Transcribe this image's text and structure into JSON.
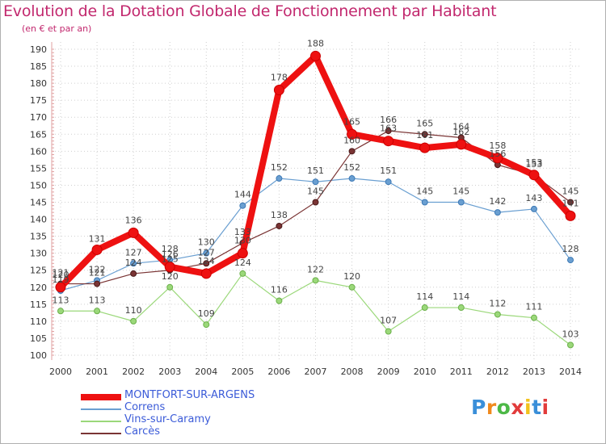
{
  "title": "Evolution de la Dotation Globale de Fonctionnement par Habitant",
  "subtitle": "(en € et par an)",
  "logo": {
    "text": "Proxiti",
    "colors": [
      "#3a8fd9",
      "#f08a1d",
      "#4cb846",
      "#e23b3b",
      "#f2c21d",
      "#3a8fd9",
      "#e23b3b"
    ]
  },
  "chart_data": {
    "type": "line",
    "title": "Evolution de la Dotation Globale de Fonctionnement par Habitant",
    "subtitle": "(en € et par an)",
    "x": [
      2000,
      2001,
      2002,
      2003,
      2004,
      2005,
      2006,
      2007,
      2008,
      2009,
      2010,
      2011,
      2012,
      2013,
      2014
    ],
    "x_tick_labels": [
      "2000",
      "2001",
      "2002",
      "2003",
      "2004",
      "2005",
      "2006",
      "2007",
      "2008",
      "2009",
      "2010",
      "2011",
      "2012",
      "2013",
      "2014"
    ],
    "ylim": [
      100,
      190
    ],
    "y_tick_labels": [
      "100",
      "105",
      "110",
      "115",
      "120",
      "125",
      "130",
      "135",
      "140",
      "145",
      "150",
      "155",
      "160",
      "165",
      "170",
      "175",
      "180",
      "185",
      "190"
    ],
    "grid": true,
    "legend_position": "bottom-left",
    "series": [
      {
        "name": "MONTFORT-SUR-ARGENS",
        "color": "#ee1111",
        "values": [
          120,
          131,
          136,
          126,
          124,
          130,
          178,
          188,
          165,
          163,
          161,
          162,
          158,
          153,
          141
        ]
      },
      {
        "name": "Correns",
        "color": "#6a9fd1",
        "values": [
          119,
          122,
          127,
          128,
          130,
          144,
          152,
          151,
          152,
          151,
          145,
          145,
          142,
          143,
          128
        ]
      },
      {
        "name": "Vins-sur-Caramy",
        "color": "#9bd87a",
        "values": [
          113,
          113,
          110,
          120,
          109,
          124,
          116,
          122,
          120,
          107,
          114,
          114,
          112,
          111,
          103
        ]
      },
      {
        "name": "Carcès",
        "color": "#7a3434",
        "values": [
          121,
          121,
          124,
          125,
          127,
          133,
          138,
          145,
          160,
          166,
          165,
          164,
          156,
          153,
          145
        ]
      }
    ]
  }
}
